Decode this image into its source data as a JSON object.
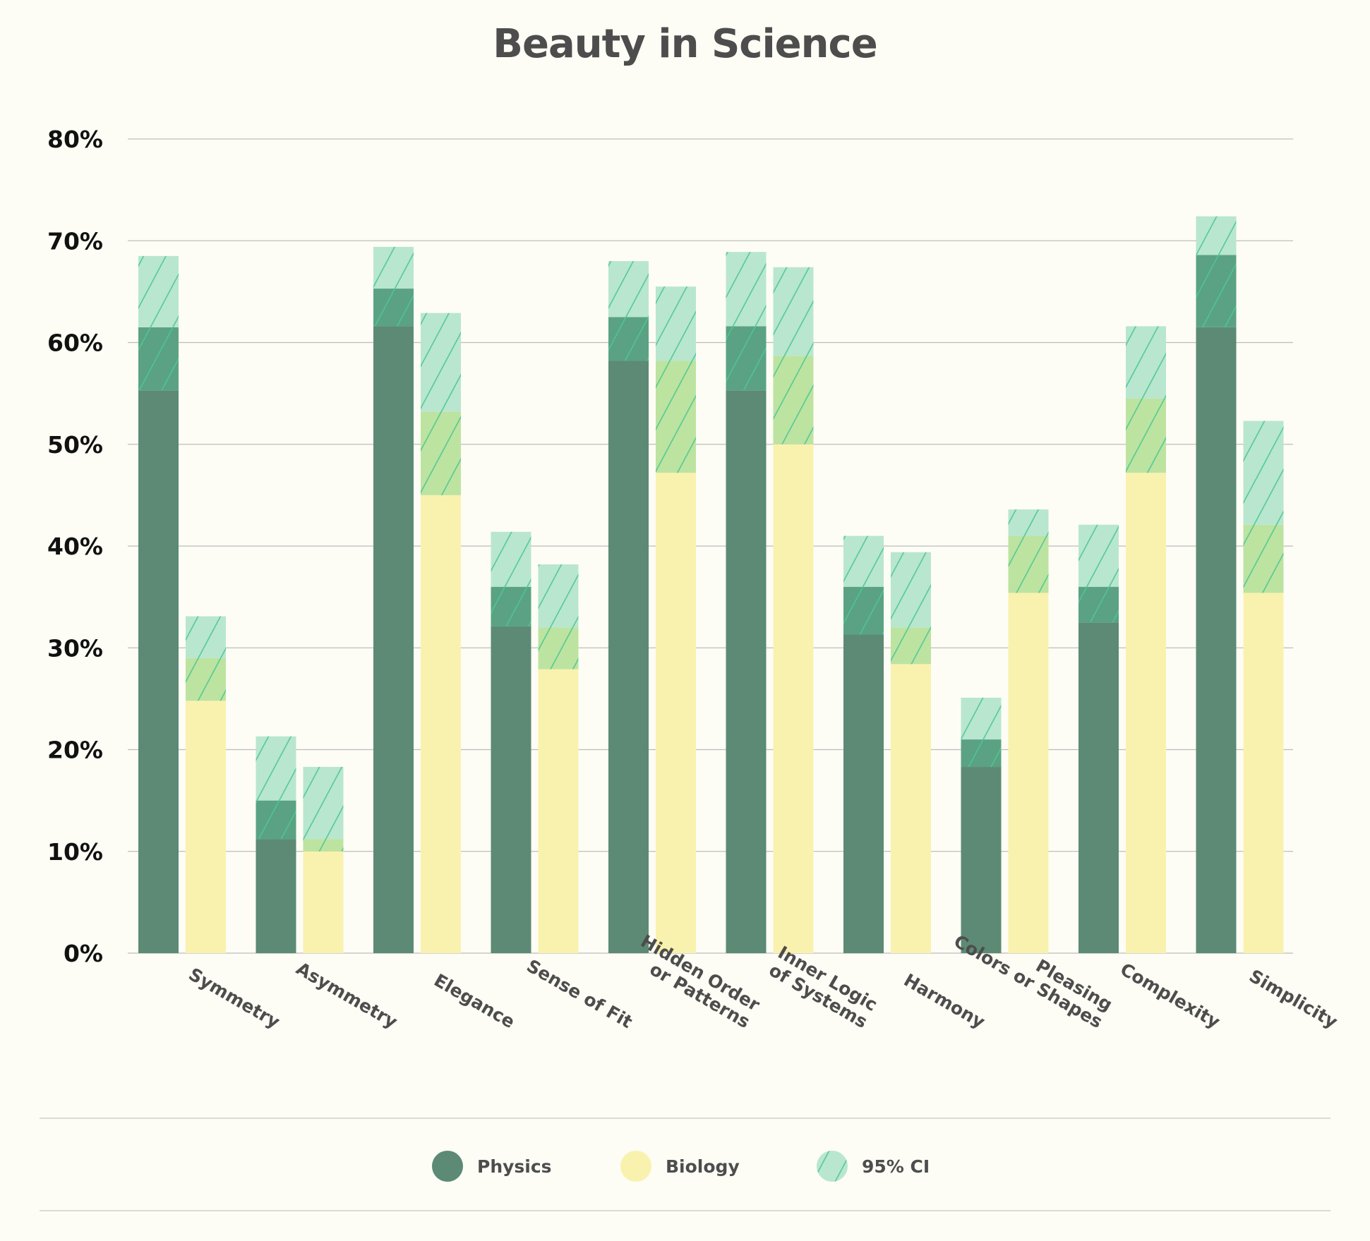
{
  "chart_data": {
    "type": "bar",
    "title": "Beauty in Science",
    "xlabel": "",
    "ylabel": "",
    "ylim": [
      0,
      80
    ],
    "yticks": [
      "0%",
      "10%",
      "20%",
      "30%",
      "40%",
      "50%",
      "60%",
      "70%",
      "80%"
    ],
    "grid": true,
    "legend_position": "bottom",
    "categories": [
      "Symmetry",
      "Asymmetry",
      "Elegance",
      "Sense of Fit",
      "Hidden Order\nor Patterns",
      "Inner Logic\nof Systems",
      "Harmony",
      "Pleasing\nColors or Shapes",
      "Complexity",
      "Simplicity"
    ],
    "series": [
      {
        "name": "Physics",
        "color": "#5c8a75",
        "ci_overlap_color": "#5aa283",
        "values": [
          61.5,
          15.0,
          65.3,
          36.0,
          62.5,
          61.6,
          36.0,
          21.0,
          36.0,
          68.6
        ],
        "ci_lower": [
          55.3,
          11.2,
          61.6,
          32.1,
          58.2,
          55.3,
          31.3,
          18.3,
          32.5,
          61.5
        ],
        "ci_upper": [
          68.5,
          21.3,
          69.4,
          41.4,
          68.0,
          68.9,
          41.0,
          25.1,
          42.1,
          72.4
        ]
      },
      {
        "name": "Biology",
        "color": "#f9f2ae",
        "ci_overlap_color": "#bde3a1",
        "values": [
          29.0,
          11.2,
          53.2,
          32.0,
          58.2,
          58.7,
          32.0,
          41.0,
          54.5,
          42.1
        ],
        "ci_lower": [
          24.8,
          10.0,
          45.0,
          27.9,
          47.2,
          50.0,
          28.4,
          35.4,
          47.2,
          35.4
        ],
        "ci_upper": [
          33.1,
          18.3,
          62.9,
          38.2,
          65.5,
          67.4,
          39.4,
          43.6,
          61.6,
          52.3
        ]
      }
    ],
    "ci_label": "95% CI",
    "ci_color": "#b9e6cf",
    "ci_hatch_color": "#4cc894"
  }
}
